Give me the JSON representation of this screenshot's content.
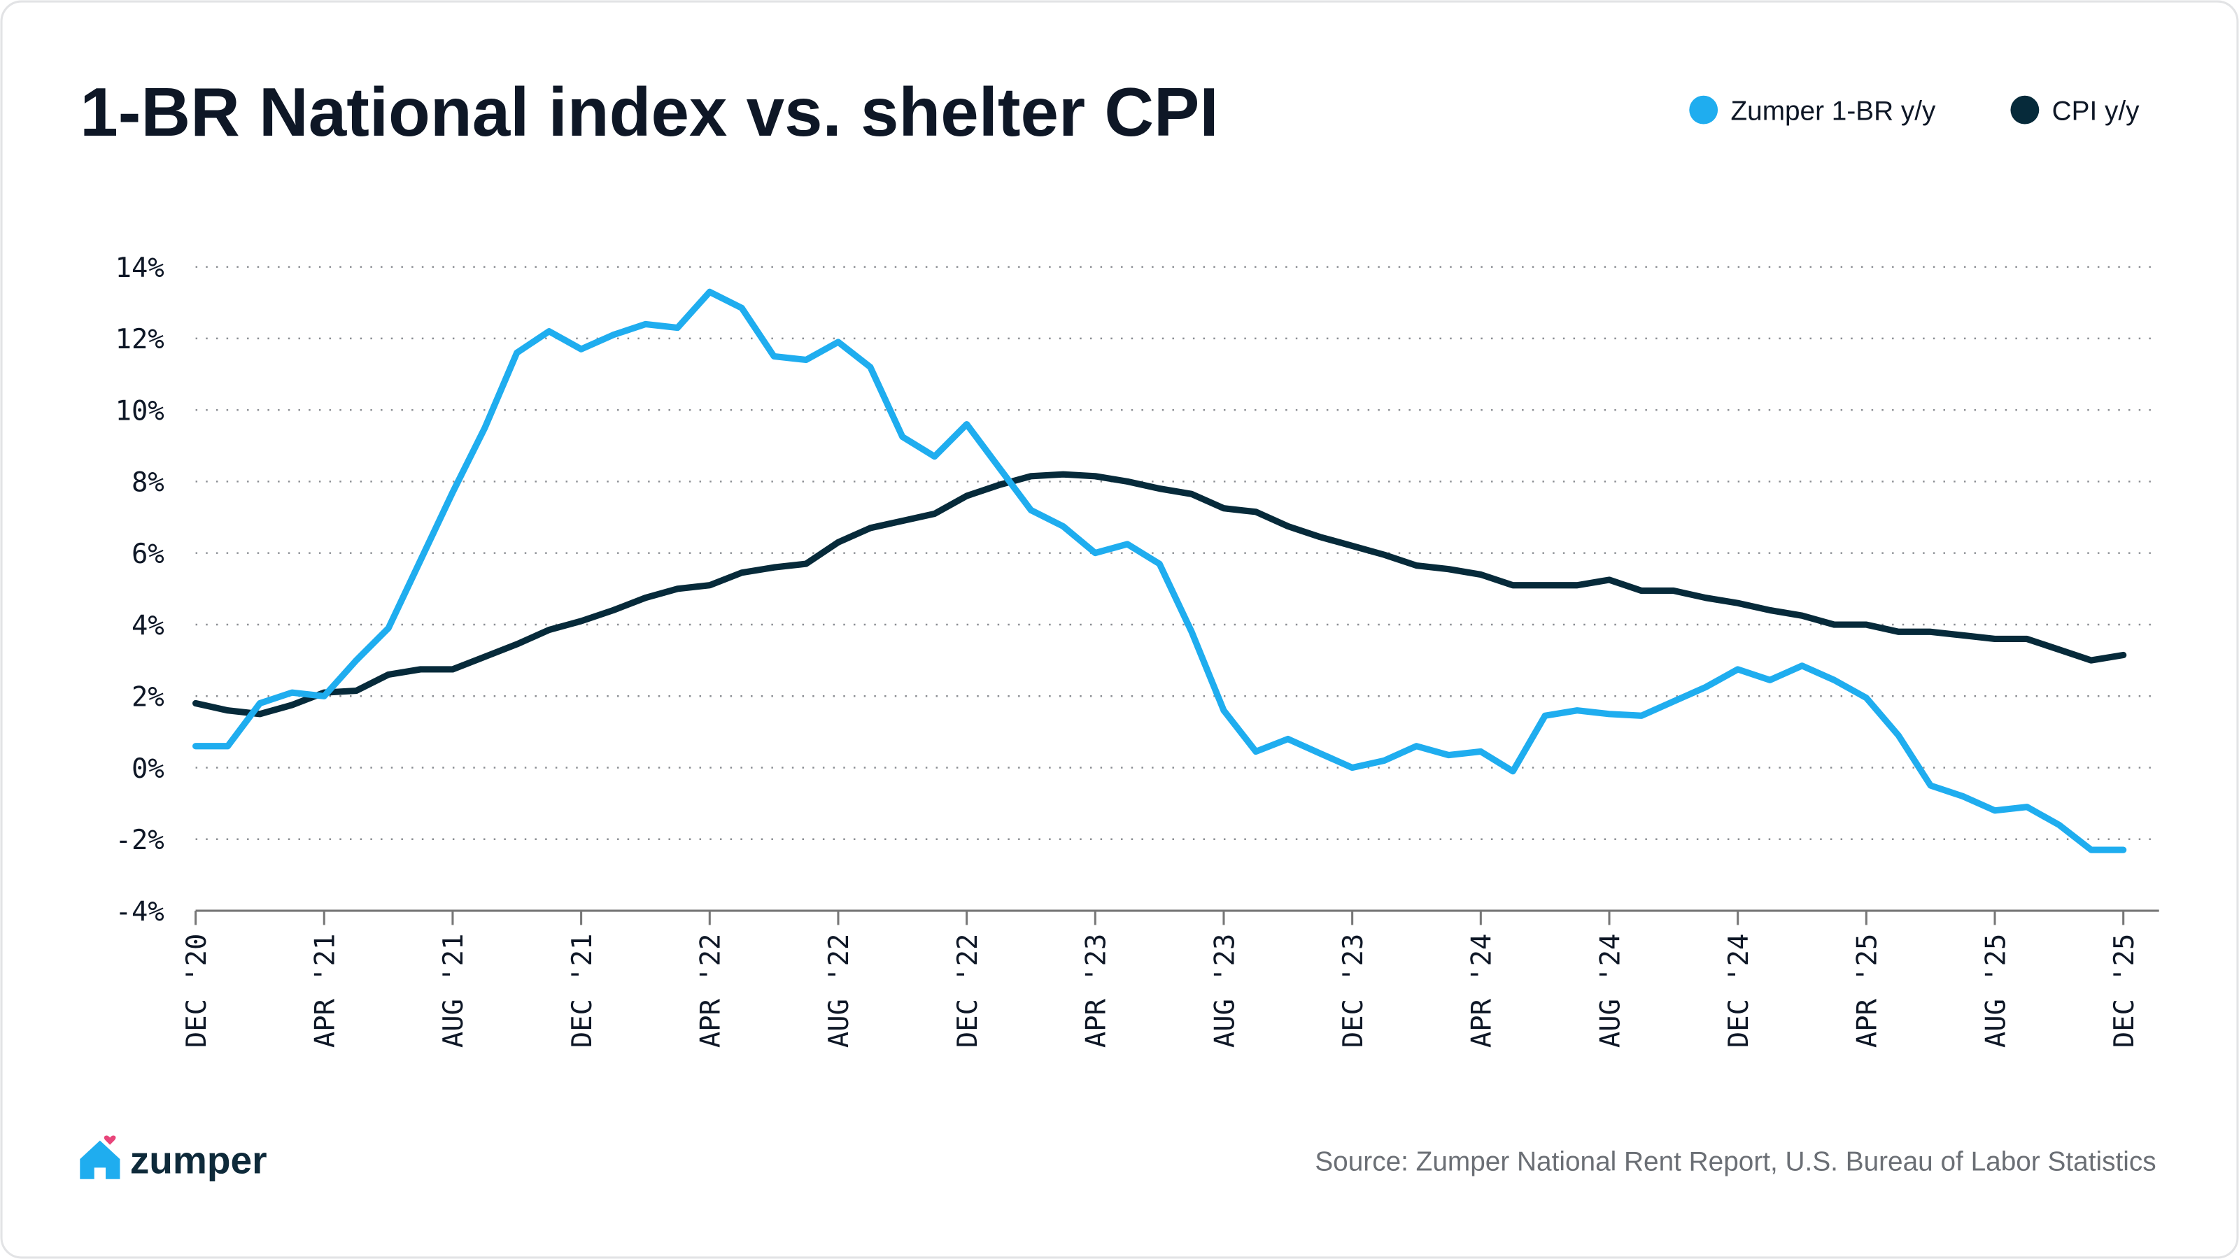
{
  "chart_data": {
    "type": "line",
    "title": "1-BR National index vs. shelter CPI",
    "xlabel": "",
    "ylabel": "",
    "ylim": [
      -4,
      14
    ],
    "y_ticks": [
      14,
      12,
      10,
      8,
      6,
      4,
      2,
      0,
      -2,
      -4
    ],
    "y_tick_labels": [
      "14%",
      "12%",
      "10%",
      "8%",
      "6%",
      "4%",
      "2%",
      "0%",
      "-2%",
      "-4%"
    ],
    "x_tick_labels": [
      "DEC '20",
      "APR '21",
      "AUG '21",
      "DEC '21",
      "APR '22",
      "AUG '22",
      "DEC '22",
      "APR '23",
      "AUG '23",
      "DEC '23",
      "APR '24",
      "AUG '24",
      "DEC '24",
      "APR '25",
      "AUG '25",
      "DEC '25"
    ],
    "x": [
      "2020-12",
      "2021-01",
      "2021-02",
      "2021-03",
      "2021-04",
      "2021-05",
      "2021-06",
      "2021-07",
      "2021-08",
      "2021-09",
      "2021-10",
      "2021-11",
      "2021-12",
      "2022-01",
      "2022-02",
      "2022-03",
      "2022-04",
      "2022-05",
      "2022-06",
      "2022-07",
      "2022-08",
      "2022-09",
      "2022-10",
      "2022-11",
      "2022-12",
      "2023-01",
      "2023-02",
      "2023-03",
      "2023-04",
      "2023-05",
      "2023-06",
      "2023-07",
      "2023-08",
      "2023-09",
      "2023-10",
      "2023-11",
      "2023-12",
      "2024-01",
      "2024-02",
      "2024-03",
      "2024-04",
      "2024-05",
      "2024-06",
      "2024-07",
      "2024-08",
      "2024-09",
      "2024-10",
      "2024-11",
      "2024-12",
      "2025-01",
      "2025-02",
      "2025-03",
      "2025-04",
      "2025-05",
      "2025-06",
      "2025-07",
      "2025-08",
      "2025-09",
      "2025-10",
      "2025-11",
      "2025-12"
    ],
    "grid": true,
    "legend_position": "top-right",
    "series": [
      {
        "name": "Zumper 1-BR y/y",
        "color": "#1fadef",
        "values": [
          0.6,
          0.6,
          1.8,
          2.1,
          2.0,
          3.0,
          3.9,
          5.8,
          7.7,
          9.5,
          11.6,
          12.2,
          11.7,
          12.1,
          12.4,
          12.3,
          13.3,
          12.85,
          11.5,
          11.4,
          11.9,
          11.2,
          9.25,
          8.7,
          9.6,
          8.4,
          7.2,
          6.75,
          6.0,
          6.25,
          5.7,
          3.8,
          1.6,
          0.45,
          0.8,
          0.4,
          0.0,
          0.2,
          0.6,
          0.35,
          0.45,
          -0.1,
          1.45,
          1.6,
          1.5,
          1.45,
          1.85,
          2.25,
          2.75,
          2.45,
          2.85,
          2.45,
          1.95,
          0.9,
          -0.5,
          -0.8,
          -1.2,
          -1.1,
          -1.6,
          -2.3,
          -2.3
        ]
      },
      {
        "name": "CPI y/y",
        "color": "#062a3a",
        "values": [
          1.8,
          1.6,
          1.5,
          1.75,
          2.1,
          2.15,
          2.6,
          2.75,
          2.75,
          3.1,
          3.45,
          3.85,
          4.1,
          4.4,
          4.75,
          5.0,
          5.1,
          5.45,
          5.6,
          5.7,
          6.3,
          6.7,
          6.9,
          7.1,
          7.6,
          7.9,
          8.15,
          8.2,
          8.15,
          8.0,
          7.8,
          7.65,
          7.25,
          7.15,
          6.75,
          6.45,
          6.2,
          5.95,
          5.65,
          5.55,
          5.4,
          5.1,
          5.1,
          5.1,
          5.25,
          4.95,
          4.95,
          4.75,
          4.6,
          4.4,
          4.25,
          4.0,
          4.0,
          3.8,
          3.8,
          3.7,
          3.6,
          3.6,
          3.3,
          3.0,
          3.15
        ]
      }
    ]
  },
  "source": "Source: Zumper National Rent Report, U.S. Bureau of Labor Statistics",
  "logo": {
    "text": "zumper",
    "icon": "house-heart-icon",
    "color": "#1fadef",
    "heart_color": "#e8457a"
  }
}
